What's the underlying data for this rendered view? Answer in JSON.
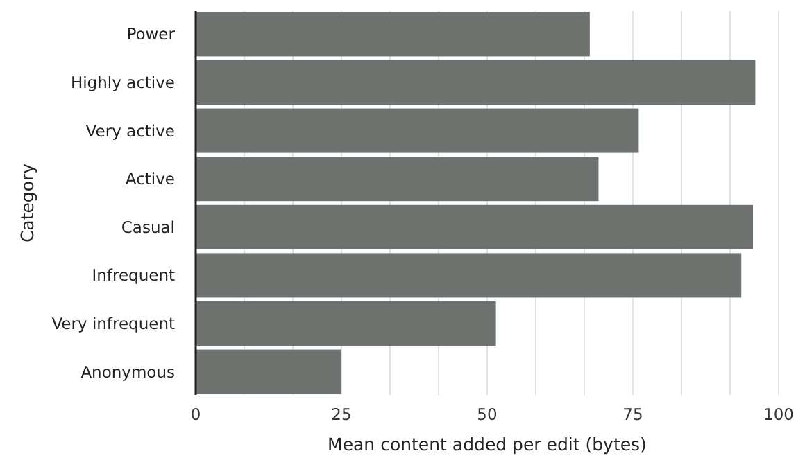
{
  "chart_data": {
    "type": "bar",
    "orientation": "horizontal",
    "xlabel": "Mean content added per edit (bytes)",
    "ylabel": "Category",
    "categories": [
      "Power",
      "Highly active",
      "Very active",
      "Active",
      "Casual",
      "Infrequent",
      "Very infrequent",
      "Anonymous"
    ],
    "values": [
      67.6,
      96.0,
      76.0,
      69.1,
      95.6,
      93.6,
      51.5,
      24.9
    ],
    "color": "#6e7370",
    "xlim": [
      0,
      100
    ],
    "xticks": [
      0,
      {
        "value": 8.33,
        "label": null
      },
      {
        "value": 16.67,
        "label": null
      },
      25,
      {
        "value": 33.33,
        "label": null
      },
      {
        "value": 41.67,
        "label": null
      },
      50,
      {
        "value": 58.33,
        "label": null
      },
      {
        "value": 66.67,
        "label": null
      },
      75,
      {
        "value": 83.33,
        "label": null
      },
      {
        "value": 91.67,
        "label": null
      },
      100
    ],
    "grid": "x"
  }
}
